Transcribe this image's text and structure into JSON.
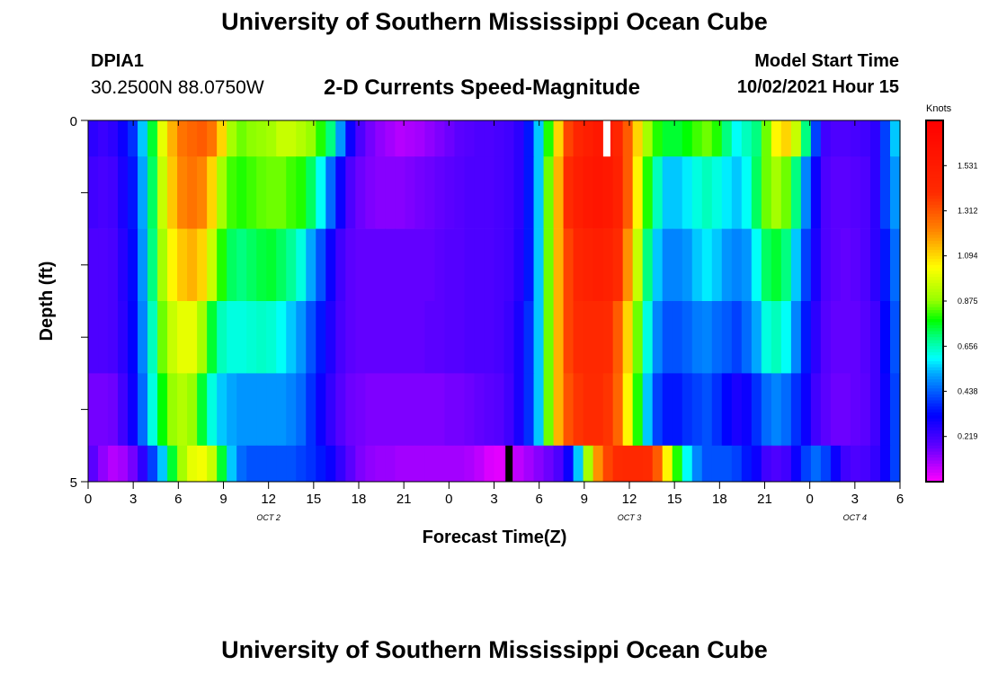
{
  "header": {
    "title": "University of Southern Mississippi Ocean Cube",
    "station": "DPIA1",
    "coords": "30.2500N  88.0750W",
    "subtitle": "2-D Currents Speed-Magnitude",
    "model_start_label": "Model Start Time",
    "model_start_value": "10/02/2021 Hour 15"
  },
  "footer": {
    "title": "University of Southern Mississippi Ocean Cube"
  },
  "chart_data": {
    "type": "heatmap",
    "title": "2-D Currents Speed-Magnitude",
    "xlabel": "Forecast Time(Z)",
    "ylabel": "Depth (ft)",
    "x_ticks": [
      "0",
      "3",
      "6",
      "9",
      "12",
      "15",
      "18",
      "21",
      "0",
      "3",
      "6",
      "9",
      "12",
      "15",
      "18",
      "21",
      "0",
      "3",
      "6"
    ],
    "date_labels": [
      {
        "label": "OCT 2",
        "tick_index": 4
      },
      {
        "label": "OCT 3",
        "tick_index": 12
      },
      {
        "label": "OCT 4",
        "tick_index": 17
      }
    ],
    "y_ticks": [
      "0",
      "5"
    ],
    "ylim": [
      0,
      5
    ],
    "colorbar": {
      "title": "Knots",
      "labels": [
        "1.531",
        "1.312",
        "1.094",
        "0.875",
        "0.656",
        "0.438",
        "0.219"
      ],
      "range": [
        0,
        1.75
      ]
    },
    "time_hours_start": 0,
    "time_hours_step": 1,
    "depth_levels": 5,
    "values": [
      [
        0.25,
        0.23,
        0.25,
        0.3,
        0.38,
        0.55,
        0.75,
        1.0,
        1.15,
        1.25,
        1.28,
        1.3,
        1.25,
        1.1,
        0.9,
        0.85,
        0.87,
        0.88,
        0.9,
        0.95,
        0.95,
        0.92,
        0.88,
        0.8,
        0.7,
        0.5,
        0.3,
        0.2,
        0.15,
        0.12,
        0.1,
        0.08,
        0.09,
        0.1,
        0.12,
        0.14,
        0.16,
        0.18,
        0.19,
        0.2,
        0.2,
        0.21,
        0.22,
        0.25,
        0.35,
        0.55,
        0.8,
        1.1,
        1.35,
        1.45,
        1.5,
        1.55,
        1.52,
        1.45,
        1.3,
        1.1,
        0.9,
        0.8,
        0.75,
        0.75,
        0.78,
        0.82,
        0.85,
        0.8,
        0.7,
        0.6,
        0.65,
        0.7,
        0.85,
        1.05,
        1.1,
        0.95,
        0.7,
        0.4,
        0.22,
        0.2,
        0.2,
        0.21,
        0.22,
        0.25,
        0.4,
        0.55
      ],
      [
        0.22,
        0.21,
        0.22,
        0.28,
        0.35,
        0.52,
        0.72,
        0.95,
        1.12,
        1.22,
        1.25,
        1.22,
        1.1,
        0.9,
        0.82,
        0.8,
        0.82,
        0.84,
        0.85,
        0.85,
        0.82,
        0.8,
        0.72,
        0.6,
        0.45,
        0.3,
        0.2,
        0.16,
        0.14,
        0.13,
        0.13,
        0.13,
        0.14,
        0.15,
        0.16,
        0.17,
        0.18,
        0.19,
        0.2,
        0.2,
        0.2,
        0.21,
        0.22,
        0.25,
        0.35,
        0.55,
        0.85,
        1.15,
        1.4,
        1.5,
        1.55,
        1.58,
        1.55,
        1.48,
        1.3,
        1.05,
        0.8,
        0.65,
        0.55,
        0.55,
        0.58,
        0.62,
        0.65,
        0.62,
        0.58,
        0.55,
        0.6,
        0.72,
        0.85,
        0.9,
        0.85,
        0.7,
        0.48,
        0.3,
        0.2,
        0.18,
        0.18,
        0.19,
        0.2,
        0.25,
        0.4,
        0.5
      ],
      [
        0.2,
        0.2,
        0.21,
        0.26,
        0.33,
        0.5,
        0.7,
        0.9,
        1.05,
        1.12,
        1.15,
        1.1,
        0.95,
        0.8,
        0.72,
        0.7,
        0.72,
        0.74,
        0.75,
        0.72,
        0.68,
        0.62,
        0.52,
        0.42,
        0.3,
        0.22,
        0.18,
        0.17,
        0.17,
        0.17,
        0.17,
        0.17,
        0.17,
        0.17,
        0.17,
        0.18,
        0.19,
        0.19,
        0.2,
        0.2,
        0.2,
        0.21,
        0.22,
        0.26,
        0.35,
        0.55,
        0.85,
        1.15,
        1.35,
        1.45,
        1.48,
        1.5,
        1.48,
        1.4,
        1.2,
        0.95,
        0.7,
        0.55,
        0.48,
        0.48,
        0.5,
        0.55,
        0.58,
        0.55,
        0.5,
        0.48,
        0.5,
        0.6,
        0.72,
        0.75,
        0.7,
        0.55,
        0.4,
        0.28,
        0.2,
        0.18,
        0.17,
        0.18,
        0.2,
        0.25,
        0.35,
        0.45
      ],
      [
        0.2,
        0.2,
        0.21,
        0.25,
        0.32,
        0.48,
        0.65,
        0.85,
        0.95,
        1.0,
        1.0,
        0.9,
        0.75,
        0.65,
        0.62,
        0.62,
        0.63,
        0.64,
        0.63,
        0.6,
        0.55,
        0.5,
        0.42,
        0.35,
        0.27,
        0.21,
        0.18,
        0.17,
        0.17,
        0.17,
        0.17,
        0.17,
        0.17,
        0.17,
        0.18,
        0.18,
        0.19,
        0.19,
        0.2,
        0.2,
        0.2,
        0.21,
        0.23,
        0.28,
        0.38,
        0.55,
        0.85,
        1.15,
        1.35,
        1.4,
        1.42,
        1.42,
        1.4,
        1.3,
        1.1,
        0.85,
        0.62,
        0.48,
        0.42,
        0.42,
        0.44,
        0.47,
        0.48,
        0.45,
        0.43,
        0.4,
        0.45,
        0.52,
        0.62,
        0.65,
        0.6,
        0.48,
        0.35,
        0.25,
        0.19,
        0.17,
        0.17,
        0.17,
        0.19,
        0.22,
        0.32,
        0.42
      ],
      [
        0.15,
        0.15,
        0.16,
        0.22,
        0.3,
        0.45,
        0.62,
        0.78,
        0.88,
        0.92,
        0.88,
        0.75,
        0.62,
        0.55,
        0.52,
        0.5,
        0.5,
        0.5,
        0.5,
        0.5,
        0.48,
        0.45,
        0.38,
        0.3,
        0.24,
        0.19,
        0.16,
        0.15,
        0.14,
        0.14,
        0.14,
        0.14,
        0.14,
        0.14,
        0.14,
        0.14,
        0.15,
        0.15,
        0.16,
        0.17,
        0.18,
        0.19,
        0.22,
        0.28,
        0.38,
        0.55,
        0.85,
        1.15,
        1.32,
        1.38,
        1.4,
        1.4,
        1.38,
        1.28,
        1.05,
        0.8,
        0.55,
        0.4,
        0.35,
        0.35,
        0.38,
        0.4,
        0.42,
        0.38,
        0.32,
        0.28,
        0.3,
        0.38,
        0.45,
        0.48,
        0.45,
        0.38,
        0.3,
        0.22,
        0.18,
        0.16,
        0.16,
        0.17,
        0.18,
        0.22,
        0.3,
        0.4
      ],
      [
        0.18,
        0.12,
        0.08,
        0.1,
        0.15,
        0.25,
        0.4,
        0.55,
        0.75,
        0.9,
        1.0,
        1.02,
        0.95,
        0.75,
        0.55,
        0.45,
        0.42,
        0.42,
        0.42,
        0.42,
        0.42,
        0.4,
        0.38,
        0.35,
        0.3,
        0.24,
        0.18,
        0.14,
        0.12,
        0.11,
        0.11,
        0.1,
        0.1,
        0.1,
        0.1,
        0.1,
        0.1,
        0.1,
        0.09,
        0.07,
        0.04,
        0.03,
        0.05,
        0.07,
        0.1,
        0.13,
        0.16,
        0.2,
        0.3,
        0.55,
        0.9,
        1.2,
        1.35,
        1.4,
        1.42,
        1.42,
        1.4,
        1.3,
        1.05,
        0.8,
        0.6,
        0.48,
        0.42,
        0.42,
        0.42,
        0.4,
        0.35,
        0.3,
        0.22,
        0.2,
        0.22,
        0.3,
        0.4,
        0.45,
        0.4,
        0.3,
        0.22,
        0.2,
        0.21,
        0.24,
        0.3,
        0.4
      ]
    ],
    "markers": [
      {
        "color": "#ffffff",
        "forecast_hour": 34.5,
        "depth_from": 0,
        "depth_to": 0.5
      },
      {
        "color": "#000000",
        "forecast_hour": 28.0,
        "depth_from": 4.5,
        "depth_to": 5
      }
    ]
  }
}
